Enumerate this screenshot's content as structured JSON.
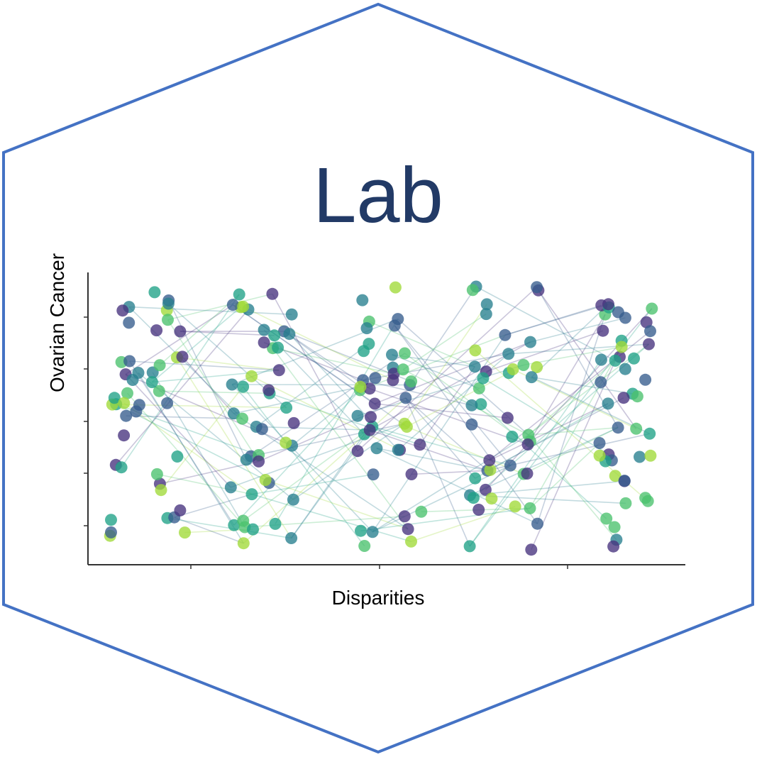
{
  "logo": {
    "title": "Lab",
    "ylabel": "Ovarian Cancer",
    "xlabel": "Disparities",
    "colors": {
      "hex_border": "#4472C4",
      "title": "#223A66",
      "axis": "#333333",
      "palette": [
        "#46327E",
        "#365C8D",
        "#277F8E",
        "#1FA187",
        "#4AC16D",
        "#A0DA39"
      ]
    }
  }
}
